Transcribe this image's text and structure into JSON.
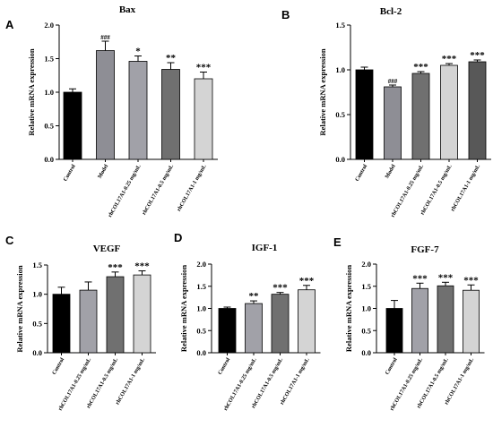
{
  "colors": {
    "control": "#000000",
    "model": "#8e8e95",
    "dose_low": "#a1a1a8",
    "dose_mid": "#707070",
    "dose_high": "#d4d4d4",
    "dose_top": "#585858",
    "axis": "#000000"
  },
  "chart_data": [
    {
      "panel": "A",
      "type": "bar",
      "title": "Bax",
      "ylabel": "Relative mRNA expression",
      "ylim": [
        0,
        2.0
      ],
      "yticks": [
        "0.0",
        "0.5",
        "1.0",
        "1.5",
        "2.0"
      ],
      "categories": [
        "Control",
        "Model",
        "rhCOL17A1-0.25 mg/mL",
        "rhCOL17A1-0.5 mg/mL",
        "rhCOL17A1-1 mg/mL"
      ],
      "values": [
        1.0,
        1.62,
        1.46,
        1.34,
        1.2
      ],
      "errors": [
        0.05,
        0.14,
        0.08,
        0.1,
        0.1
      ],
      "significance": [
        "",
        "###",
        "*",
        "**",
        "***"
      ]
    },
    {
      "panel": "B",
      "type": "bar",
      "title": "Bcl-2",
      "ylabel": "Relative mRNA expression",
      "ylim": [
        0,
        1.5
      ],
      "yticks": [
        "0.0",
        "0.5",
        "1.0",
        "1.5"
      ],
      "categories": [
        "Control",
        "Model",
        "rhCOL17A1-0.25 mg/mL",
        "rhCOL17A1-0.5 mg/mL",
        "rhCOL17A1-1 mg/mL"
      ],
      "values": [
        1.0,
        0.81,
        0.96,
        1.05,
        1.09
      ],
      "errors": [
        0.03,
        0.02,
        0.02,
        0.02,
        0.02
      ],
      "significance": [
        "",
        "###",
        "***",
        "***",
        "***"
      ]
    },
    {
      "panel": "C",
      "type": "bar",
      "title": "VEGF",
      "ylabel": "Relative mRNA expression",
      "ylim": [
        0,
        1.5
      ],
      "yticks": [
        "0.0",
        "0.5",
        "1.0",
        "1.5"
      ],
      "categories": [
        "Control",
        "rhCOL17A1-0.25 mg/mL",
        "rhCOL17A1-0.5 mg/mL",
        "rhCOL17A1-1 mg/mL"
      ],
      "values": [
        1.0,
        1.07,
        1.3,
        1.33
      ],
      "errors": [
        0.12,
        0.14,
        0.08,
        0.07
      ],
      "significance": [
        "",
        "",
        "***",
        "***"
      ]
    },
    {
      "panel": "D",
      "type": "bar",
      "title": "IGF-1",
      "ylabel": "Relative mRNA expression",
      "ylim": [
        0,
        2.0
      ],
      "yticks": [
        "0.0",
        "0.5",
        "1.0",
        "1.5",
        "2.0"
      ],
      "categories": [
        "Control",
        "rhCOL17A1-0.25 mg/mL",
        "rhCOL17A1-0.5 mg/mL",
        "rhCOL17A1-1 mg/mL"
      ],
      "values": [
        1.0,
        1.11,
        1.32,
        1.42
      ],
      "errors": [
        0.03,
        0.06,
        0.04,
        0.1
      ],
      "significance": [
        "",
        "**",
        "***",
        "***"
      ]
    },
    {
      "panel": "E",
      "type": "bar",
      "title": "FGF-7",
      "ylabel": "Relative mRNA expression",
      "ylim": [
        0,
        2.0
      ],
      "yticks": [
        "0.0",
        "0.5",
        "1.0",
        "1.5",
        "2.0"
      ],
      "categories": [
        "Control",
        "rhCOL17A1-0.25 mg/mL",
        "rhCOL17A1-0.5 mg/mL",
        "rhCOL17A1-1 mg/mL"
      ],
      "values": [
        1.0,
        1.45,
        1.51,
        1.41
      ],
      "errors": [
        0.18,
        0.12,
        0.08,
        0.12
      ],
      "significance": [
        "",
        "***",
        "***",
        "***"
      ]
    }
  ]
}
